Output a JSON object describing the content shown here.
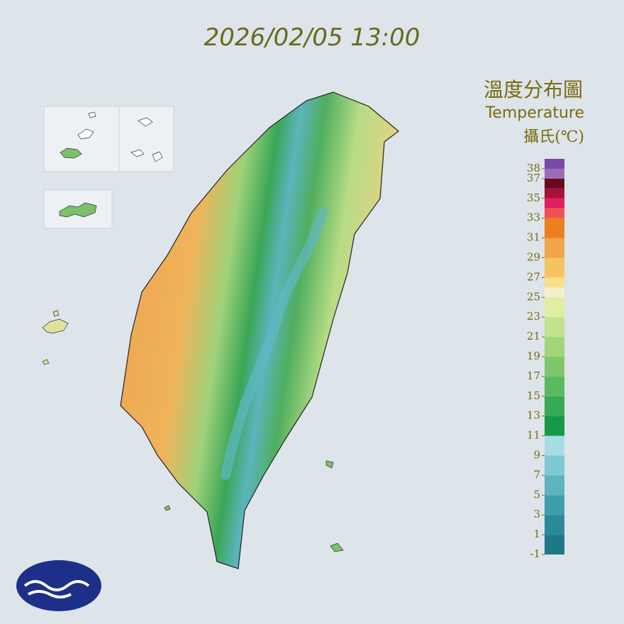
{
  "header": {
    "timestamp": "2026/02/05 13:00"
  },
  "legend": {
    "title": "溫度分布圖",
    "subtitle": "Temperature",
    "unit": "攝氏(℃)",
    "range": [
      -1,
      39
    ],
    "ticks": [
      38,
      37,
      35,
      33,
      31,
      29,
      27,
      25,
      23,
      21,
      19,
      17,
      15,
      13,
      11,
      9,
      7,
      5,
      3,
      1,
      -1
    ],
    "bands": [
      {
        "from": -1,
        "to": 1,
        "color": "#1e7886"
      },
      {
        "from": 1,
        "to": 3,
        "color": "#2b8a98"
      },
      {
        "from": 3,
        "to": 5,
        "color": "#3f9eab"
      },
      {
        "from": 5,
        "to": 7,
        "color": "#5db3bf"
      },
      {
        "from": 7,
        "to": 9,
        "color": "#7dc8d2"
      },
      {
        "from": 9,
        "to": 11,
        "color": "#a6dde4"
      },
      {
        "from": 11,
        "to": 13,
        "color": "#179848"
      },
      {
        "from": 13,
        "to": 15,
        "color": "#38a954"
      },
      {
        "from": 15,
        "to": 17,
        "color": "#5bb961"
      },
      {
        "from": 17,
        "to": 19,
        "color": "#7fc76c"
      },
      {
        "from": 19,
        "to": 21,
        "color": "#a2d47a"
      },
      {
        "from": 21,
        "to": 23,
        "color": "#c4e28c"
      },
      {
        "from": 23,
        "to": 25,
        "color": "#e0eda2"
      },
      {
        "from": 25,
        "to": 26,
        "color": "#f3f0c8"
      },
      {
        "from": 26,
        "to": 27,
        "color": "#f7e08c"
      },
      {
        "from": 27,
        "to": 29,
        "color": "#f4c463"
      },
      {
        "from": 29,
        "to": 31,
        "color": "#f0a548"
      },
      {
        "from": 31,
        "to": 33,
        "color": "#ec7f22"
      },
      {
        "from": 33,
        "to": 34,
        "color": "#f15050"
      },
      {
        "from": 34,
        "to": 35,
        "color": "#e0205c"
      },
      {
        "from": 35,
        "to": 36,
        "color": "#a8123a"
      },
      {
        "from": 36,
        "to": 37,
        "color": "#6a0a1c"
      },
      {
        "from": 37,
        "to": 38,
        "color": "#9b6cb6"
      },
      {
        "from": 38,
        "to": 39,
        "color": "#7a48a8"
      }
    ]
  }
}
